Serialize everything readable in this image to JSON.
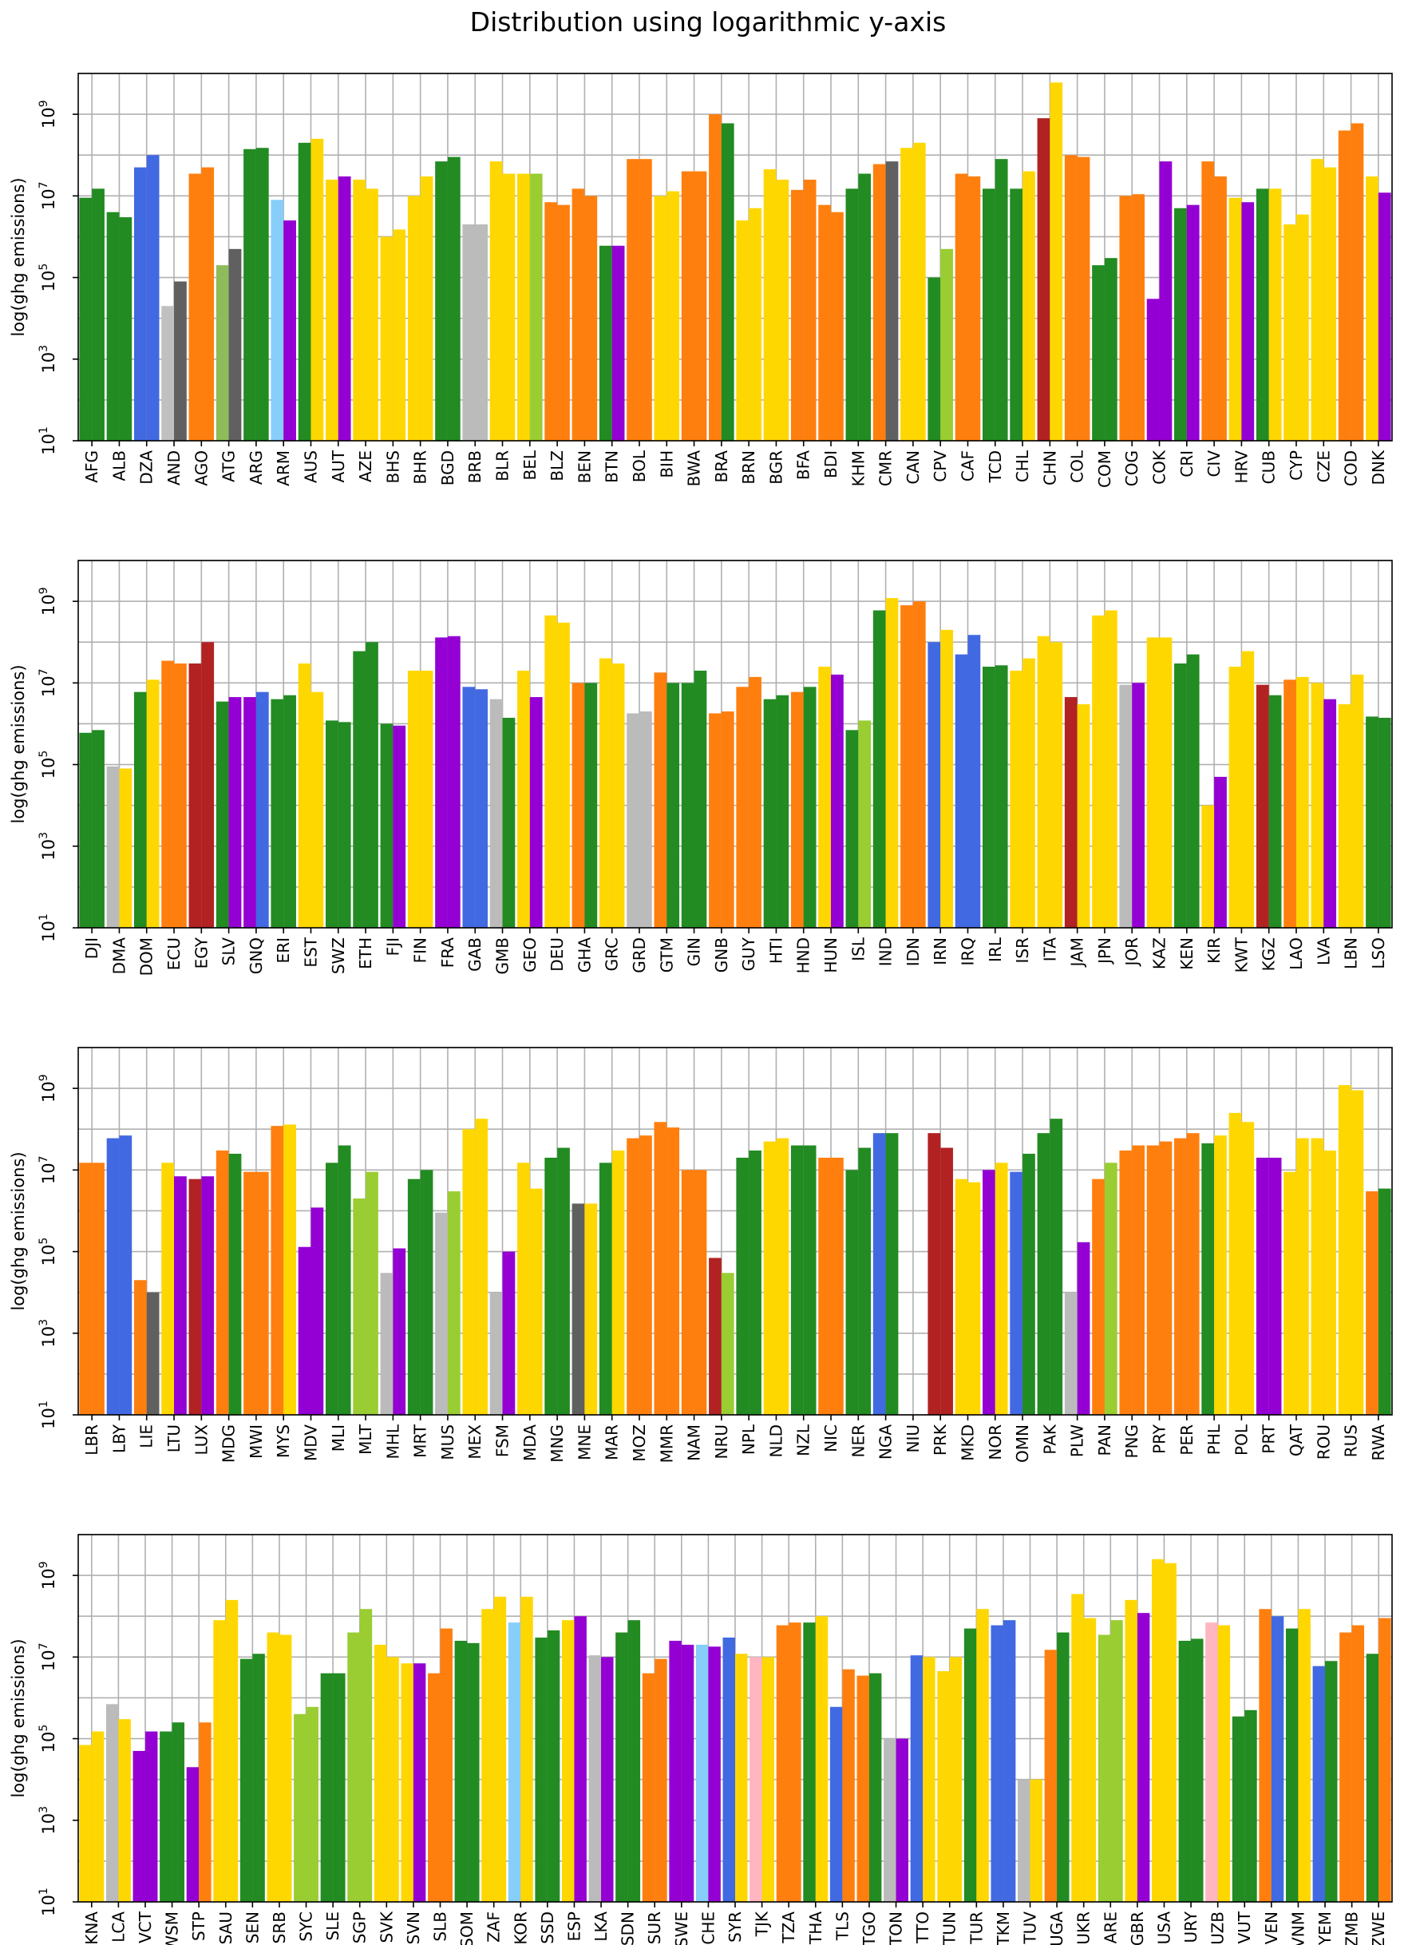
{
  "title": "Distribution using logarithmic y-axis",
  "chart_data": [
    {
      "type": "bar",
      "scale": "log",
      "grid": true,
      "ylabel": "log(ghg emissions)",
      "ylim": [
        10,
        10000000000
      ],
      "yticks": [
        "10^1",
        "10^3",
        "10^5",
        "10^7",
        "10^9"
      ],
      "categories": [
        "AFG",
        "ALB",
        "DZA",
        "AND",
        "AGO",
        "ATG",
        "ARG",
        "ARM",
        "AUS",
        "AUT",
        "AZE",
        "BHS",
        "BHR",
        "BGD",
        "BRB",
        "BLR",
        "BEL",
        "BLZ",
        "BEN",
        "BTN",
        "BOL",
        "BIH",
        "BWA",
        "BRA",
        "BRN",
        "BGR",
        "BFA",
        "BDI",
        "KHM",
        "CMR",
        "CAN",
        "CPV",
        "CAF",
        "TCD",
        "CHL",
        "CHN",
        "COL",
        "COM",
        "COG",
        "COK",
        "CRI",
        "CIV",
        "HRV",
        "CUB",
        "CYP",
        "CZE",
        "COD",
        "DNK"
      ],
      "colors": [
        "#228b22",
        "#228b22",
        "#4169e1",
        "#c0c0c0",
        "#ff7f0e",
        "#8fbc5a",
        "#228b22",
        "#87cefa",
        "#228b22",
        "#ffd700",
        "#ffd700",
        "#ffd700",
        "#ffd700",
        "#228b22",
        "#bbbbbb",
        "#ffd700",
        "#ffd700",
        "#ff7f0e",
        "#ff7f0e",
        "#228b22",
        "#ff7f0e",
        "#ffd700",
        "#ff7f0e",
        "#ff7f0e",
        "#ffd700",
        "#ffd700",
        "#ff7f0e",
        "#ff7f0e",
        "#228b22",
        "#ff7f0e",
        "#ffd700",
        "#228b22",
        "#ff7f0e",
        "#228b22",
        "#228b22",
        "#b22222",
        "#ff7f0e",
        "#228b22",
        "#ff7f0e",
        "#9400d3",
        "#228b22",
        "#ff7f0e",
        "#ffd700",
        "#228b22",
        "#ffd700",
        "#ffd700",
        "#ff7f0e",
        "#ffd700"
      ],
      "colors2": [
        "#228b22",
        "#228b22",
        "#4169e1",
        "#606060",
        "#ff7f0e",
        "#606060",
        "#228b22",
        "#9400d3",
        "#ffd700",
        "#9400d3",
        "#ffd700",
        "#ffd700",
        "#ffd700",
        "#228b22",
        "#bbbbbb",
        "#ffd700",
        "#9acd32",
        "#ff7f0e",
        "#ff7f0e",
        "#9400d3",
        "#ff7f0e",
        "#ffd700",
        "#ff7f0e",
        "#228b22",
        "#ffd700",
        "#ffd700",
        "#ff7f0e",
        "#ff7f0e",
        "#228b22",
        "#606060",
        "#ffd700",
        "#9acd32",
        "#ff7f0e",
        "#228b22",
        "#ffd700",
        "#ffd700",
        "#ff7f0e",
        "#228b22",
        "#ff7f0e",
        "#9400d3",
        "#9400d3",
        "#ff7f0e",
        "#9400d3",
        "#ffd700",
        "#ffd700",
        "#ffd700",
        "#ff7f0e",
        "#9400d3"
      ],
      "v1": [
        9000000,
        4000000,
        50000000,
        20000,
        35000000,
        200000,
        140000000,
        8000000,
        200000000,
        25000000,
        25000000,
        1000000,
        10000000,
        70000000,
        2000000,
        70000000,
        35000000,
        7000000,
        15000000,
        600000,
        80000000,
        10000000,
        40000000,
        1000000000,
        2500000,
        45000000,
        14000000,
        6000000,
        15000000,
        60000000,
        150000000,
        100000,
        35000000,
        15000000,
        15000000,
        800000000,
        100000000,
        200000,
        10000000,
        30000,
        5000000,
        70000000,
        9000000,
        15000000,
        2000000,
        80000000,
        400000000,
        30000000
      ],
      "v2": [
        15000000,
        3000000,
        100000000,
        80000,
        50000000,
        500000,
        150000000,
        2500000,
        250000000,
        30000000,
        15000000,
        1500000,
        30000000,
        90000000,
        2000000,
        35000000,
        35000000,
        6000000,
        10000000,
        600000,
        80000000,
        13000000,
        40000000,
        600000000,
        5000000,
        25000000,
        25000000,
        4000000,
        35000000,
        70000000,
        200000000,
        500000,
        30000000,
        80000000,
        40000000,
        6000000000,
        90000000,
        300000,
        11000000,
        70000000,
        6000000,
        30000000,
        7000000,
        15000000,
        3500000,
        50000000,
        600000000,
        12000000
      ]
    },
    {
      "type": "bar",
      "scale": "log",
      "grid": true,
      "ylabel": "log(ghg emissions)",
      "ylim": [
        10,
        10000000000
      ],
      "yticks": [
        "10^1",
        "10^3",
        "10^5",
        "10^7",
        "10^9"
      ],
      "categories": [
        "DJI",
        "DMA",
        "DOM",
        "ECU",
        "EGY",
        "SLV",
        "GNQ",
        "ERI",
        "EST",
        "SWZ",
        "ETH",
        "FJI",
        "FIN",
        "FRA",
        "GAB",
        "GMB",
        "GEO",
        "DEU",
        "GHA",
        "GRC",
        "GRD",
        "GTM",
        "GIN",
        "GNB",
        "GUY",
        "HTI",
        "HND",
        "HUN",
        "ISL",
        "IND",
        "IDN",
        "IRN",
        "IRQ",
        "IRL",
        "ISR",
        "ITA",
        "JAM",
        "JPN",
        "JOR",
        "KAZ",
        "KEN",
        "KIR",
        "KWT",
        "KGZ",
        "LAO",
        "LVA",
        "LBN",
        "LSO"
      ],
      "colors": [
        "#228b22",
        "#bbbbbb",
        "#228b22",
        "#ff7f0e",
        "#b22222",
        "#228b22",
        "#9400d3",
        "#228b22",
        "#ffd700",
        "#228b22",
        "#228b22",
        "#228b22",
        "#ffd700",
        "#9400d3",
        "#4169e1",
        "#bbbbbb",
        "#ffd700",
        "#ffd700",
        "#ff7f0e",
        "#ffd700",
        "#bbbbbb",
        "#ff7f0e",
        "#228b22",
        "#ff7f0e",
        "#ff7f0e",
        "#228b22",
        "#ff7f0e",
        "#ffd700",
        "#228b22",
        "#228b22",
        "#ff7f0e",
        "#4169e1",
        "#4169e1",
        "#228b22",
        "#ffd700",
        "#ffd700",
        "#b22222",
        "#ffd700",
        "#bbbbbb",
        "#ffd700",
        "#228b22",
        "#ffd700",
        "#ffd700",
        "#b22222",
        "#ff7f0e",
        "#ffd700",
        "#ffd700",
        "#228b22"
      ],
      "colors2": [
        "#228b22",
        "#ffd700",
        "#ffd700",
        "#ff7f0e",
        "#b22222",
        "#9400d3",
        "#4169e1",
        "#228b22",
        "#ffd700",
        "#228b22",
        "#228b22",
        "#9400d3",
        "#ffd700",
        "#9400d3",
        "#4169e1",
        "#228b22",
        "#9400d3",
        "#ffd700",
        "#228b22",
        "#ffd700",
        "#bbbbbb",
        "#228b22",
        "#228b22",
        "#ff7f0e",
        "#ff7f0e",
        "#228b22",
        "#228b22",
        "#9400d3",
        "#9acd32",
        "#ffd700",
        "#ff7f0e",
        "#ffd700",
        "#4169e1",
        "#228b22",
        "#ffd700",
        "#ffd700",
        "#ffd700",
        "#ffd700",
        "#9400d3",
        "#ffd700",
        "#228b22",
        "#9400d3",
        "#ffd700",
        "#228b22",
        "#ffd700",
        "#9400d3",
        "#ffd700",
        "#228b22"
      ],
      "v1": [
        600000,
        90000,
        6000000,
        35000000,
        30000000,
        3500000,
        4500000,
        4000000,
        30000000,
        1200000,
        60000000,
        1000000,
        20000000,
        130000000,
        8000000,
        4000000,
        20000000,
        450000000,
        10000000,
        40000000,
        1800000,
        18000000,
        10000000,
        1800000,
        8000000,
        4000000,
        6000000,
        25000000,
        700000,
        600000000,
        800000000,
        100000000,
        50000000,
        25000000,
        20000000,
        140000000,
        4500000,
        450000000,
        9000000,
        130000000,
        30000000,
        10000,
        25000000,
        9000000,
        12000000,
        10000000,
        3000000,
        1500000
      ],
      "v2": [
        700000,
        80000,
        12000000,
        30000000,
        100000000,
        4500000,
        6000000,
        5000000,
        6000000,
        1100000,
        100000000,
        900000,
        20000000,
        140000000,
        7000000,
        1400000,
        4500000,
        300000000,
        10000000,
        30000000,
        2000000,
        10000000,
        20000000,
        2000000,
        14000000,
        5000000,
        8000000,
        16000000,
        1200000,
        1200000000,
        1000000000,
        200000000,
        150000000,
        27000000,
        40000000,
        100000000,
        3000000,
        600000000,
        10000000,
        130000000,
        50000000,
        50000,
        60000000,
        5000000,
        14000000,
        4000000,
        16000000,
        1400000
      ]
    },
    {
      "type": "bar",
      "scale": "log",
      "grid": true,
      "ylabel": "log(ghg emissions)",
      "ylim": [
        10,
        10000000000
      ],
      "yticks": [
        "10^1",
        "10^3",
        "10^5",
        "10^7",
        "10^9"
      ],
      "categories": [
        "LBR",
        "LBY",
        "LIE",
        "LTU",
        "LUX",
        "MDG",
        "MWI",
        "MYS",
        "MDV",
        "MLI",
        "MLT",
        "MHL",
        "MRT",
        "MUS",
        "MEX",
        "FSM",
        "MDA",
        "MNG",
        "MNE",
        "MAR",
        "MOZ",
        "MMR",
        "NAM",
        "NRU",
        "NPL",
        "NLD",
        "NZL",
        "NIC",
        "NER",
        "NGA",
        "NIU",
        "PRK",
        "MKD",
        "NOR",
        "OMN",
        "PAK",
        "PLW",
        "PAN",
        "PNG",
        "PRY",
        "PER",
        "PHL",
        "POL",
        "PRT",
        "QAT",
        "ROU",
        "RUS",
        "RWA"
      ],
      "colors": [
        "#ff7f0e",
        "#4169e1",
        "#ff7f0e",
        "#ffd700",
        "#b22222",
        "#ff7f0e",
        "#ff7f0e",
        "#ff7f0e",
        "#9400d3",
        "#228b22",
        "#9acd32",
        "#bbbbbb",
        "#228b22",
        "#bbbbbb",
        "#ffd700",
        "#bbbbbb",
        "#ffd700",
        "#228b22",
        "#606060",
        "#228b22",
        "#ff7f0e",
        "#ff7f0e",
        "#ff7f0e",
        "#b22222",
        "#228b22",
        "#ffd700",
        "#228b22",
        "#ff7f0e",
        "#228b22",
        "#4169e1",
        "#ffffff",
        "#b22222",
        "#ffd700",
        "#9400d3",
        "#4169e1",
        "#228b22",
        "#bbbbbb",
        "#ff7f0e",
        "#ff7f0e",
        "#ff7f0e",
        "#ff7f0e",
        "#228b22",
        "#ffd700",
        "#9400d3",
        "#ffd700",
        "#ffd700",
        "#ffd700",
        "#ff7f0e"
      ],
      "colors2": [
        "#ff7f0e",
        "#4169e1",
        "#606060",
        "#9400d3",
        "#9400d3",
        "#228b22",
        "#ff7f0e",
        "#ffd700",
        "#9400d3",
        "#228b22",
        "#9acd32",
        "#9400d3",
        "#228b22",
        "#9acd32",
        "#ffd700",
        "#9400d3",
        "#ffd700",
        "#228b22",
        "#ffd700",
        "#ffd700",
        "#ff7f0e",
        "#ff7f0e",
        "#ff7f0e",
        "#9acd32",
        "#228b22",
        "#ffd700",
        "#228b22",
        "#ff7f0e",
        "#228b22",
        "#228b22",
        "#ffffff",
        "#b22222",
        "#ffd700",
        "#ffd700",
        "#228b22",
        "#228b22",
        "#9400d3",
        "#9acd32",
        "#ff7f0e",
        "#ff7f0e",
        "#ff7f0e",
        "#ffd700",
        "#ffd700",
        "#9400d3",
        "#ffd700",
        "#ffd700",
        "#ffd700",
        "#228b22"
      ],
      "v1": [
        15000000,
        60000000,
        20000,
        15000000,
        6000000,
        30000000,
        9000000,
        120000000,
        130000,
        15000000,
        2000000,
        30000,
        6000000,
        900000,
        100000000,
        10000,
        15000000,
        20000000,
        1500000,
        15000000,
        60000000,
        150000000,
        10000000,
        70000,
        20000000,
        50000000,
        40000000,
        20000000,
        10000000,
        80000000,
        10,
        80000000,
        6000000,
        10000000,
        9000000,
        80000000,
        10000,
        6000000,
        30000000,
        40000000,
        60000000,
        45000000,
        250000000,
        20000000,
        9000000,
        60000000,
        1200000000,
        3000000
      ],
      "v2": [
        15000000,
        70000000,
        10000,
        7000000,
        7000000,
        25000000,
        9000000,
        130000000,
        1200000,
        40000000,
        9000000,
        120000,
        10000000,
        3000000,
        180000000,
        100000,
        3500000,
        35000000,
        1500000,
        30000000,
        70000000,
        110000000,
        10000000,
        30000,
        30000000,
        60000000,
        40000000,
        20000000,
        35000000,
        80000000,
        10,
        35000000,
        5000000,
        15000000,
        25000000,
        180000000,
        170000,
        15000000,
        40000000,
        50000000,
        80000000,
        70000000,
        150000000,
        20000000,
        60000000,
        30000000,
        900000000,
        3500000
      ]
    },
    {
      "type": "bar",
      "scale": "log",
      "grid": true,
      "ylabel": "log(ghg emissions)",
      "ylim": [
        10,
        10000000000
      ],
      "yticks": [
        "10^1",
        "10^3",
        "10^5",
        "10^7",
        "10^9"
      ],
      "categories": [
        "KNA",
        "LCA",
        "VCT",
        "WSM",
        "STP",
        "SAU",
        "SEN",
        "SRB",
        "SYC",
        "SLE",
        "SGP",
        "SVK",
        "SVN",
        "SLB",
        "SOM",
        "ZAF",
        "KOR",
        "SSD",
        "ESP",
        "LKA",
        "SDN",
        "SUR",
        "SWE",
        "CHE",
        "SYR",
        "TJK",
        "TZA",
        "THA",
        "TLS",
        "TGO",
        "TON",
        "TTO",
        "TUN",
        "TUR",
        "TKM",
        "TUV",
        "UGA",
        "UKR",
        "ARE",
        "GBR",
        "USA",
        "URY",
        "UZB",
        "VUT",
        "VEN",
        "VNM",
        "YEM",
        "ZMB",
        "ZWE"
      ],
      "colors": [
        "#ffd700",
        "#bbbbbb",
        "#9400d3",
        "#228b22",
        "#9400d3",
        "#ffd700",
        "#228b22",
        "#ffd700",
        "#9acd32",
        "#228b22",
        "#9acd32",
        "#ffd700",
        "#ffd700",
        "#ff7f0e",
        "#228b22",
        "#ffd700",
        "#87cefa",
        "#228b22",
        "#ffd700",
        "#bbbbbb",
        "#228b22",
        "#ff7f0e",
        "#9400d3",
        "#87cefa",
        "#4169e1",
        "#ffb6c1",
        "#ff7f0e",
        "#228b22",
        "#4169e1",
        "#ff7f0e",
        "#bbbbbb",
        "#4169e1",
        "#ffd700",
        "#228b22",
        "#4169e1",
        "#bbbbbb",
        "#ff7f0e",
        "#ffd700",
        "#9acd32",
        "#ffd700",
        "#ffd700",
        "#228b22",
        "#ffb6c1",
        "#228b22",
        "#ff7f0e",
        "#228b22",
        "#4169e1",
        "#ff7f0e",
        "#228b22"
      ],
      "colors2": [
        "#ffd700",
        "#ffd700",
        "#9400d3",
        "#228b22",
        "#ff7f0e",
        "#ffd700",
        "#228b22",
        "#ffd700",
        "#9acd32",
        "#228b22",
        "#9acd32",
        "#ffd700",
        "#9400d3",
        "#ff7f0e",
        "#228b22",
        "#ffd700",
        "#ffd700",
        "#228b22",
        "#9400d3",
        "#9400d3",
        "#228b22",
        "#ff7f0e",
        "#9400d3",
        "#9400d3",
        "#ffd700",
        "#ffd700",
        "#ff7f0e",
        "#ffd700",
        "#ff7f0e",
        "#228b22",
        "#9400d3",
        "#ffd700",
        "#ffd700",
        "#ffd700",
        "#4169e1",
        "#ffd700",
        "#228b22",
        "#ffd700",
        "#9acd32",
        "#9400d3",
        "#ffd700",
        "#228b22",
        "#ffd700",
        "#228b22",
        "#4169e1",
        "#ffd700",
        "#228b22",
        "#ff7f0e",
        "#ff7f0e"
      ],
      "v1": [
        70000,
        700000,
        50000,
        150000,
        20000,
        80000000,
        9000000,
        40000000,
        400000,
        4000000,
        40000000,
        20000000,
        7000000,
        4000000,
        25000000,
        150000000,
        70000000,
        30000000,
        80000000,
        11000000,
        40000000,
        4000000,
        25000000,
        20000000,
        30000000,
        10000000,
        60000000,
        70000000,
        600000,
        3500000,
        100000,
        11000000,
        4500000,
        50000000,
        60000000,
        10000,
        15000000,
        350000000,
        35000000,
        250000000,
        2500000000,
        25000000,
        70000000,
        350000,
        150000000,
        50000000,
        6000000,
        40000000,
        12000000
      ],
      "v2": [
        150000,
        300000,
        150000,
        250000,
        250000,
        250000000,
        12000000,
        35000000,
        600000,
        4000000,
        150000000,
        10000000,
        7000000,
        50000000,
        22000000,
        300000000,
        300000000,
        45000000,
        100000000,
        10000000,
        80000000,
        9000000,
        20000000,
        18000000,
        12000000,
        10000000,
        70000000,
        100000000,
        5000000,
        4000000,
        100000,
        10000000,
        10000000,
        150000000,
        80000000,
        10000,
        40000000,
        90000000,
        80000000,
        120000000,
        2000000000,
        28000000,
        60000000,
        500000,
        100000000,
        150000000,
        8000000,
        60000000,
        90000000
      ]
    }
  ]
}
